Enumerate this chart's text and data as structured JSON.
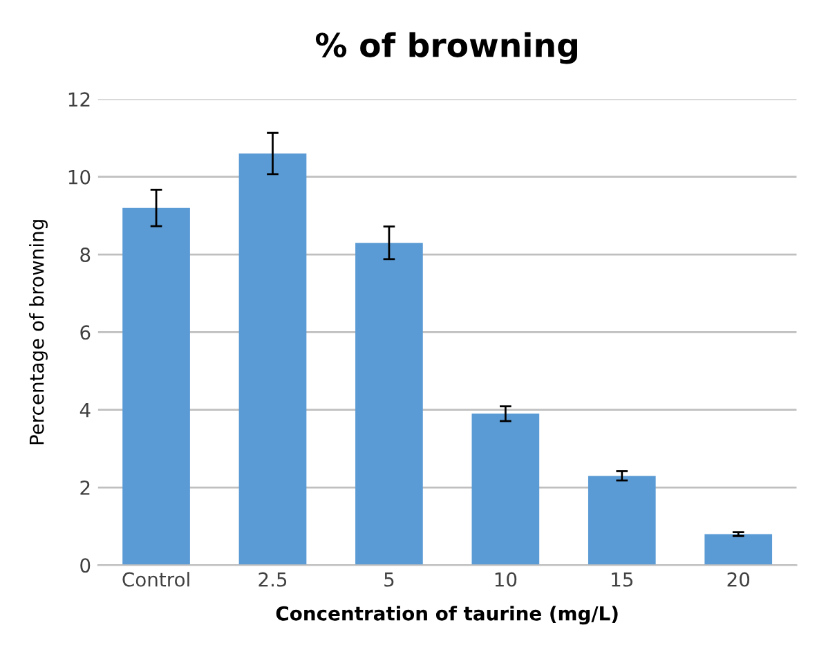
{
  "chart_data": {
    "type": "bar",
    "title": "% of browning",
    "xlabel": "Concentration of taurine (mg/L)",
    "ylabel": "Percentage of browning",
    "categories": [
      "Control",
      "2.5",
      "5",
      "10",
      "15",
      "20"
    ],
    "values": [
      9.2,
      10.6,
      8.3,
      3.9,
      2.3,
      0.8
    ],
    "errors": [
      0.47,
      0.53,
      0.42,
      0.19,
      0.12,
      0.05
    ],
    "color": "#5b9bd5",
    "ylim": [
      0,
      12
    ],
    "yticks": [
      0,
      2,
      4,
      6,
      8,
      10,
      12
    ],
    "grid": "y",
    "legend": false
  }
}
